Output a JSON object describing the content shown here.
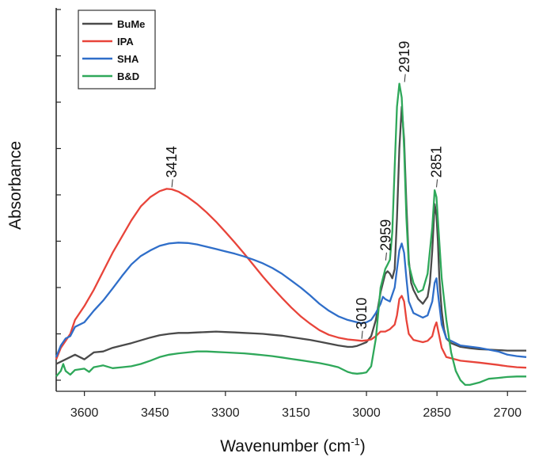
{
  "chart_data": {
    "type": "line",
    "title": "",
    "xlabel": "Wavenumber (cm",
    "xlabel_sup": "-1",
    "xlabel_end": ")",
    "ylabel": "Absorbance",
    "xlim": [
      3660,
      2660
    ],
    "ylim": [
      0,
      8.1
    ],
    "x_reversed": true,
    "x_ticks": [
      3600,
      3450,
      3300,
      3150,
      3000,
      2850,
      2700
    ],
    "x_tick_labels": [
      "3600",
      "3450",
      "3300",
      "3150",
      "3000",
      "2850",
      "2700"
    ],
    "y_ticks": [
      0,
      1,
      2,
      3,
      4,
      5,
      6,
      7,
      8
    ],
    "y_tick_labels_visible": false,
    "legend_position": "top-left",
    "series": [
      {
        "name": "BuMe",
        "color": "#4a4a4a",
        "points": [
          [
            3660,
            0.35
          ],
          [
            3640,
            0.45
          ],
          [
            3620,
            0.55
          ],
          [
            3600,
            0.45
          ],
          [
            3580,
            0.6
          ],
          [
            3560,
            0.62
          ],
          [
            3540,
            0.7
          ],
          [
            3520,
            0.75
          ],
          [
            3500,
            0.8
          ],
          [
            3480,
            0.86
          ],
          [
            3460,
            0.92
          ],
          [
            3440,
            0.97
          ],
          [
            3420,
            1.0
          ],
          [
            3400,
            1.02
          ],
          [
            3380,
            1.02
          ],
          [
            3360,
            1.03
          ],
          [
            3340,
            1.04
          ],
          [
            3320,
            1.05
          ],
          [
            3300,
            1.04
          ],
          [
            3280,
            1.03
          ],
          [
            3260,
            1.02
          ],
          [
            3240,
            1.01
          ],
          [
            3220,
            1.0
          ],
          [
            3200,
            0.98
          ],
          [
            3180,
            0.96
          ],
          [
            3160,
            0.93
          ],
          [
            3140,
            0.9
          ],
          [
            3120,
            0.87
          ],
          [
            3100,
            0.83
          ],
          [
            3080,
            0.79
          ],
          [
            3060,
            0.75
          ],
          [
            3040,
            0.72
          ],
          [
            3030,
            0.72
          ],
          [
            3020,
            0.74
          ],
          [
            3010,
            0.78
          ],
          [
            3000,
            0.82
          ],
          [
            2990,
            0.95
          ],
          [
            2980,
            1.3
          ],
          [
            2970,
            1.9
          ],
          [
            2960,
            2.3
          ],
          [
            2955,
            2.35
          ],
          [
            2950,
            2.3
          ],
          [
            2945,
            2.2
          ],
          [
            2940,
            2.4
          ],
          [
            2935,
            3.5
          ],
          [
            2930,
            5.0
          ],
          [
            2925,
            5.9
          ],
          [
            2920,
            5.2
          ],
          [
            2915,
            3.8
          ],
          [
            2910,
            2.6
          ],
          [
            2905,
            2.1
          ],
          [
            2900,
            1.95
          ],
          [
            2890,
            1.75
          ],
          [
            2880,
            1.65
          ],
          [
            2870,
            1.8
          ],
          [
            2865,
            2.1
          ],
          [
            2860,
            2.8
          ],
          [
            2855,
            3.8
          ],
          [
            2851,
            3.55
          ],
          [
            2848,
            3.0
          ],
          [
            2845,
            2.2
          ],
          [
            2840,
            1.5
          ],
          [
            2835,
            1.1
          ],
          [
            2830,
            0.9
          ],
          [
            2820,
            0.8
          ],
          [
            2800,
            0.72
          ],
          [
            2780,
            0.69
          ],
          [
            2760,
            0.67
          ],
          [
            2740,
            0.66
          ],
          [
            2720,
            0.65
          ],
          [
            2700,
            0.64
          ],
          [
            2680,
            0.64
          ],
          [
            2660,
            0.64
          ]
        ]
      },
      {
        "name": "IPA",
        "color": "#e8443a",
        "points": [
          [
            3660,
            0.45
          ],
          [
            3650,
            0.7
          ],
          [
            3640,
            0.85
          ],
          [
            3630,
            1.0
          ],
          [
            3620,
            1.3
          ],
          [
            3600,
            1.6
          ],
          [
            3580,
            1.95
          ],
          [
            3560,
            2.35
          ],
          [
            3540,
            2.75
          ],
          [
            3520,
            3.1
          ],
          [
            3500,
            3.45
          ],
          [
            3480,
            3.75
          ],
          [
            3460,
            3.95
          ],
          [
            3440,
            4.08
          ],
          [
            3425,
            4.13
          ],
          [
            3414,
            4.12
          ],
          [
            3400,
            4.07
          ],
          [
            3380,
            3.95
          ],
          [
            3360,
            3.8
          ],
          [
            3340,
            3.62
          ],
          [
            3320,
            3.42
          ],
          [
            3300,
            3.2
          ],
          [
            3280,
            2.97
          ],
          [
            3260,
            2.73
          ],
          [
            3240,
            2.48
          ],
          [
            3220,
            2.23
          ],
          [
            3200,
            2.0
          ],
          [
            3180,
            1.78
          ],
          [
            3160,
            1.57
          ],
          [
            3140,
            1.38
          ],
          [
            3120,
            1.22
          ],
          [
            3100,
            1.08
          ],
          [
            3080,
            0.98
          ],
          [
            3060,
            0.92
          ],
          [
            3040,
            0.88
          ],
          [
            3020,
            0.86
          ],
          [
            3010,
            0.85
          ],
          [
            3000,
            0.86
          ],
          [
            2990,
            0.88
          ],
          [
            2980,
            0.95
          ],
          [
            2970,
            1.05
          ],
          [
            2960,
            1.05
          ],
          [
            2950,
            1.1
          ],
          [
            2940,
            1.2
          ],
          [
            2935,
            1.4
          ],
          [
            2930,
            1.75
          ],
          [
            2925,
            1.82
          ],
          [
            2920,
            1.7
          ],
          [
            2915,
            1.3
          ],
          [
            2910,
            1.0
          ],
          [
            2900,
            0.87
          ],
          [
            2880,
            0.82
          ],
          [
            2870,
            0.85
          ],
          [
            2860,
            0.95
          ],
          [
            2855,
            1.15
          ],
          [
            2851,
            1.25
          ],
          [
            2847,
            1.05
          ],
          [
            2840,
            0.7
          ],
          [
            2830,
            0.5
          ],
          [
            2800,
            0.42
          ],
          [
            2760,
            0.38
          ],
          [
            2720,
            0.33
          ],
          [
            2700,
            0.3
          ],
          [
            2680,
            0.28
          ],
          [
            2660,
            0.27
          ]
        ]
      },
      {
        "name": "SHA",
        "color": "#2f6ec9",
        "points": [
          [
            3660,
            0.5
          ],
          [
            3650,
            0.75
          ],
          [
            3640,
            0.9
          ],
          [
            3630,
            0.95
          ],
          [
            3620,
            1.15
          ],
          [
            3600,
            1.25
          ],
          [
            3580,
            1.5
          ],
          [
            3560,
            1.72
          ],
          [
            3540,
            1.98
          ],
          [
            3520,
            2.25
          ],
          [
            3500,
            2.5
          ],
          [
            3480,
            2.68
          ],
          [
            3460,
            2.8
          ],
          [
            3440,
            2.9
          ],
          [
            3420,
            2.95
          ],
          [
            3400,
            2.97
          ],
          [
            3380,
            2.96
          ],
          [
            3360,
            2.93
          ],
          [
            3340,
            2.88
          ],
          [
            3320,
            2.83
          ],
          [
            3300,
            2.78
          ],
          [
            3280,
            2.73
          ],
          [
            3260,
            2.67
          ],
          [
            3240,
            2.6
          ],
          [
            3220,
            2.52
          ],
          [
            3200,
            2.42
          ],
          [
            3180,
            2.3
          ],
          [
            3160,
            2.15
          ],
          [
            3140,
            2.0
          ],
          [
            3120,
            1.83
          ],
          [
            3100,
            1.65
          ],
          [
            3080,
            1.5
          ],
          [
            3060,
            1.38
          ],
          [
            3040,
            1.3
          ],
          [
            3020,
            1.25
          ],
          [
            3010,
            1.23
          ],
          [
            3000,
            1.25
          ],
          [
            2990,
            1.3
          ],
          [
            2980,
            1.45
          ],
          [
            2970,
            1.65
          ],
          [
            2965,
            1.8
          ],
          [
            2960,
            1.75
          ],
          [
            2950,
            1.7
          ],
          [
            2940,
            2.0
          ],
          [
            2935,
            2.4
          ],
          [
            2930,
            2.8
          ],
          [
            2925,
            2.95
          ],
          [
            2920,
            2.75
          ],
          [
            2915,
            2.2
          ],
          [
            2910,
            1.7
          ],
          [
            2900,
            1.45
          ],
          [
            2890,
            1.4
          ],
          [
            2880,
            1.35
          ],
          [
            2870,
            1.4
          ],
          [
            2860,
            1.7
          ],
          [
            2855,
            2.1
          ],
          [
            2851,
            2.2
          ],
          [
            2847,
            1.8
          ],
          [
            2840,
            1.2
          ],
          [
            2830,
            0.9
          ],
          [
            2800,
            0.75
          ],
          [
            2760,
            0.7
          ],
          [
            2720,
            0.62
          ],
          [
            2700,
            0.55
          ],
          [
            2680,
            0.52
          ],
          [
            2660,
            0.5
          ]
        ]
      },
      {
        "name": "B&D",
        "color": "#2fa85a",
        "points": [
          [
            3660,
            0.08
          ],
          [
            3650,
            0.2
          ],
          [
            3645,
            0.35
          ],
          [
            3640,
            0.2
          ],
          [
            3630,
            0.12
          ],
          [
            3620,
            0.22
          ],
          [
            3600,
            0.25
          ],
          [
            3590,
            0.18
          ],
          [
            3580,
            0.28
          ],
          [
            3560,
            0.32
          ],
          [
            3540,
            0.26
          ],
          [
            3520,
            0.28
          ],
          [
            3500,
            0.3
          ],
          [
            3480,
            0.35
          ],
          [
            3460,
            0.42
          ],
          [
            3440,
            0.5
          ],
          [
            3420,
            0.55
          ],
          [
            3400,
            0.58
          ],
          [
            3380,
            0.6
          ],
          [
            3360,
            0.62
          ],
          [
            3340,
            0.62
          ],
          [
            3320,
            0.61
          ],
          [
            3300,
            0.6
          ],
          [
            3280,
            0.59
          ],
          [
            3260,
            0.58
          ],
          [
            3240,
            0.56
          ],
          [
            3220,
            0.54
          ],
          [
            3200,
            0.52
          ],
          [
            3180,
            0.49
          ],
          [
            3160,
            0.46
          ],
          [
            3140,
            0.43
          ],
          [
            3120,
            0.4
          ],
          [
            3100,
            0.37
          ],
          [
            3080,
            0.33
          ],
          [
            3060,
            0.28
          ],
          [
            3040,
            0.18
          ],
          [
            3030,
            0.15
          ],
          [
            3020,
            0.14
          ],
          [
            3010,
            0.15
          ],
          [
            3000,
            0.17
          ],
          [
            2990,
            0.3
          ],
          [
            2980,
            0.9
          ],
          [
            2970,
            2.0
          ],
          [
            2960,
            2.4
          ],
          [
            2955,
            2.5
          ],
          [
            2950,
            2.6
          ],
          [
            2945,
            3.2
          ],
          [
            2940,
            4.6
          ],
          [
            2935,
            5.9
          ],
          [
            2930,
            6.4
          ],
          [
            2925,
            6.1
          ],
          [
            2920,
            5.0
          ],
          [
            2915,
            3.5
          ],
          [
            2910,
            2.5
          ],
          [
            2900,
            2.1
          ],
          [
            2890,
            1.9
          ],
          [
            2880,
            1.95
          ],
          [
            2870,
            2.3
          ],
          [
            2860,
            3.3
          ],
          [
            2855,
            4.1
          ],
          [
            2851,
            3.95
          ],
          [
            2847,
            3.3
          ],
          [
            2840,
            2.2
          ],
          [
            2830,
            1.3
          ],
          [
            2820,
            0.6
          ],
          [
            2810,
            0.2
          ],
          [
            2800,
            0.0
          ],
          [
            2790,
            -0.1
          ],
          [
            2780,
            -0.1
          ],
          [
            2760,
            -0.05
          ],
          [
            2740,
            0.03
          ],
          [
            2720,
            0.05
          ],
          [
            2700,
            0.07
          ],
          [
            2680,
            0.08
          ],
          [
            2660,
            0.08
          ]
        ]
      }
    ],
    "annotations": [
      {
        "label": "3414",
        "x": 3414,
        "y": 4.13
      },
      {
        "label": "3010",
        "x": 3010,
        "y": 0.86
      },
      {
        "label": "2959",
        "x": 2959,
        "y": 2.55
      },
      {
        "label": "2919",
        "x": 2919,
        "y": 6.4
      },
      {
        "label": "2851",
        "x": 2851,
        "y": 4.13
      }
    ]
  }
}
